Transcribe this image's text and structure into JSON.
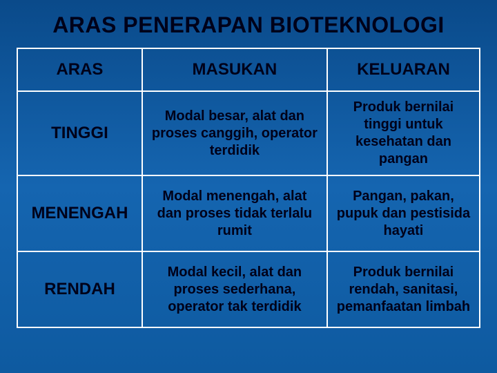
{
  "title": "ARAS PENERAPAN BIOTEKNOLOGI",
  "table": {
    "headers": {
      "col1": "ARAS",
      "col2": "MASUKAN",
      "col3": "KELUARAN"
    },
    "rows": [
      {
        "level": "TINGGI",
        "masukan": "Modal besar, alat dan proses canggih, operator terdidik",
        "keluaran": "Produk bernilai tinggi untuk kesehatan dan pangan"
      },
      {
        "level": "MENENGAH",
        "masukan": "Modal menengah, alat dan proses tidak terlalu rumit",
        "keluaran": "Pangan, pakan, pupuk dan pestisida hayati"
      },
      {
        "level": "RENDAH",
        "masukan": "Modal kecil, alat dan proses sederhana, operator tak terdidik",
        "keluaran": "Produk bernilai rendah, sanitasi, pemanfaatan limbah"
      }
    ]
  },
  "style": {
    "bg_gradient_top": "#0a4a8a",
    "bg_gradient_mid": "#1565b0",
    "bg_gradient_bot": "#0e5aa0",
    "border_color": "#ffffff",
    "text_color": "#000019",
    "title_fontsize": 32,
    "header_fontsize": 24,
    "level_fontsize": 24,
    "content_fontsize": 20,
    "col_widths_pct": [
      27,
      40,
      33
    ]
  }
}
